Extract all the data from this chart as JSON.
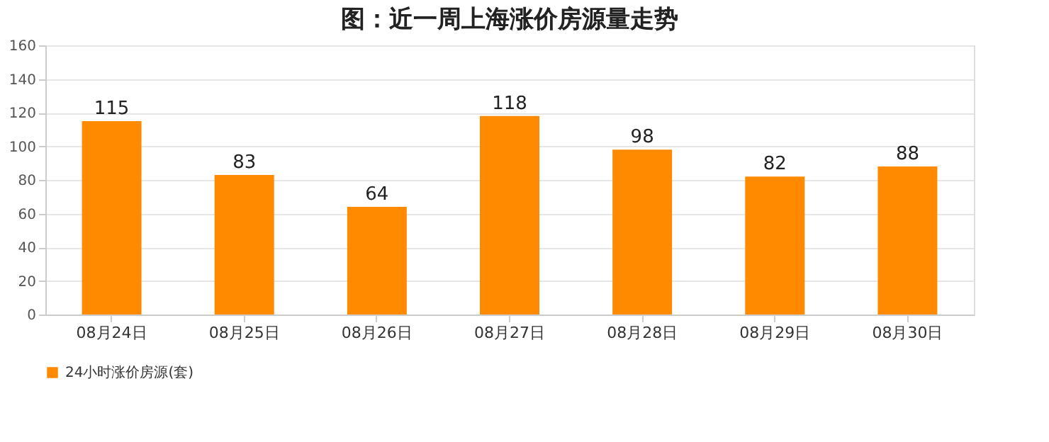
{
  "chart_data": {
    "type": "bar",
    "title": "图：近一周上海涨价房源量走势",
    "categories": [
      "08月24日",
      "08月25日",
      "08月26日",
      "08月27日",
      "08月28日",
      "08月29日",
      "08月30日"
    ],
    "series": [
      {
        "name": "24小时涨价房源(套)",
        "color": "#ff8a00",
        "values": [
          115,
          83,
          64,
          118,
          98,
          82,
          88
        ]
      }
    ],
    "ylim": [
      0,
      160
    ],
    "yticks": [
      0,
      20,
      40,
      60,
      80,
      100,
      120,
      140,
      160
    ],
    "grid": "y",
    "legend": "bottom",
    "data_labels": true
  }
}
